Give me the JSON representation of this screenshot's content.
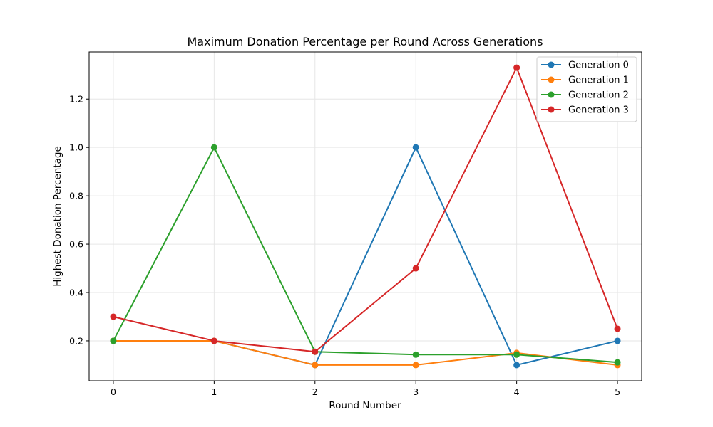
{
  "chart_data": {
    "type": "line",
    "title": "Maximum Donation Percentage per Round Across Generations",
    "xlabel": "Round Number",
    "ylabel": "Highest Donation Percentage",
    "x": [
      0,
      1,
      2,
      3,
      4,
      5
    ],
    "x_ticks": [
      "0",
      "1",
      "2",
      "3",
      "4",
      "5"
    ],
    "y_ticks": [
      "0.2",
      "0.4",
      "0.6",
      "0.8",
      "1.0",
      "1.2"
    ],
    "xlim": [
      -0.24,
      5.24
    ],
    "ylim": [
      0.035,
      1.395
    ],
    "grid": true,
    "legend_position": "top-right",
    "series": [
      {
        "name": "Generation 0",
        "color": "#1f77b4",
        "values": [
          0.2,
          0.2,
          0.1,
          1.0,
          0.1,
          0.2
        ]
      },
      {
        "name": "Generation 1",
        "color": "#ff7f0e",
        "values": [
          0.2,
          0.2,
          0.1,
          0.1,
          0.15,
          0.1
        ]
      },
      {
        "name": "Generation 2",
        "color": "#2ca02c",
        "values": [
          0.2,
          1.0,
          0.155,
          0.143,
          0.143,
          0.111
        ]
      },
      {
        "name": "Generation 3",
        "color": "#d62728",
        "values": [
          0.3,
          0.2,
          0.155,
          0.5,
          1.33,
          0.25
        ]
      }
    ]
  }
}
